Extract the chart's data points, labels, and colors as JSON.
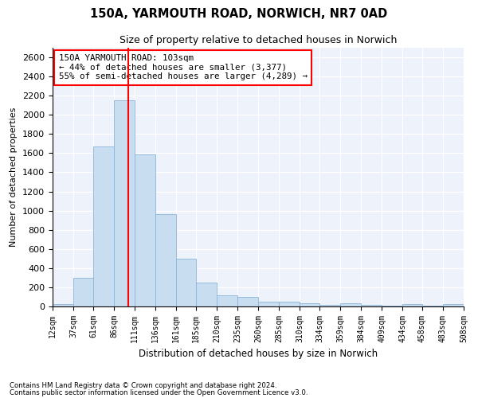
{
  "title1": "150A, YARMOUTH ROAD, NORWICH, NR7 0AD",
  "title2": "Size of property relative to detached houses in Norwich",
  "xlabel": "Distribution of detached houses by size in Norwich",
  "ylabel": "Number of detached properties",
  "bar_color": "#c9ddf0",
  "bar_edge_color": "#8ab4d8",
  "vline_color": "red",
  "vline_x": 103,
  "annotation_title": "150A YARMOUTH ROAD: 103sqm",
  "annotation_line2": "← 44% of detached houses are smaller (3,377)",
  "annotation_line3": "55% of semi-detached houses are larger (4,289) →",
  "footnote1": "Contains HM Land Registry data © Crown copyright and database right 2024.",
  "footnote2": "Contains public sector information licensed under the Open Government Licence v3.0.",
  "bin_edges": [
    12,
    37,
    61,
    86,
    111,
    136,
    161,
    185,
    210,
    235,
    260,
    285,
    310,
    334,
    359,
    384,
    409,
    434,
    458,
    483,
    508
  ],
  "bar_heights": [
    25,
    295,
    1670,
    2150,
    1590,
    960,
    500,
    250,
    120,
    100,
    50,
    50,
    30,
    20,
    30,
    20,
    10,
    25,
    5,
    25
  ],
  "ylim": [
    0,
    2700
  ],
  "yticks": [
    0,
    200,
    400,
    600,
    800,
    1000,
    1200,
    1400,
    1600,
    1800,
    2000,
    2200,
    2400,
    2600
  ],
  "background_color": "#eef2fb",
  "title1_fontsize": 10.5,
  "title2_fontsize": 9,
  "ylabel_fontsize": 8,
  "xlabel_fontsize": 8.5,
  "ytick_fontsize": 8,
  "xtick_fontsize": 7
}
